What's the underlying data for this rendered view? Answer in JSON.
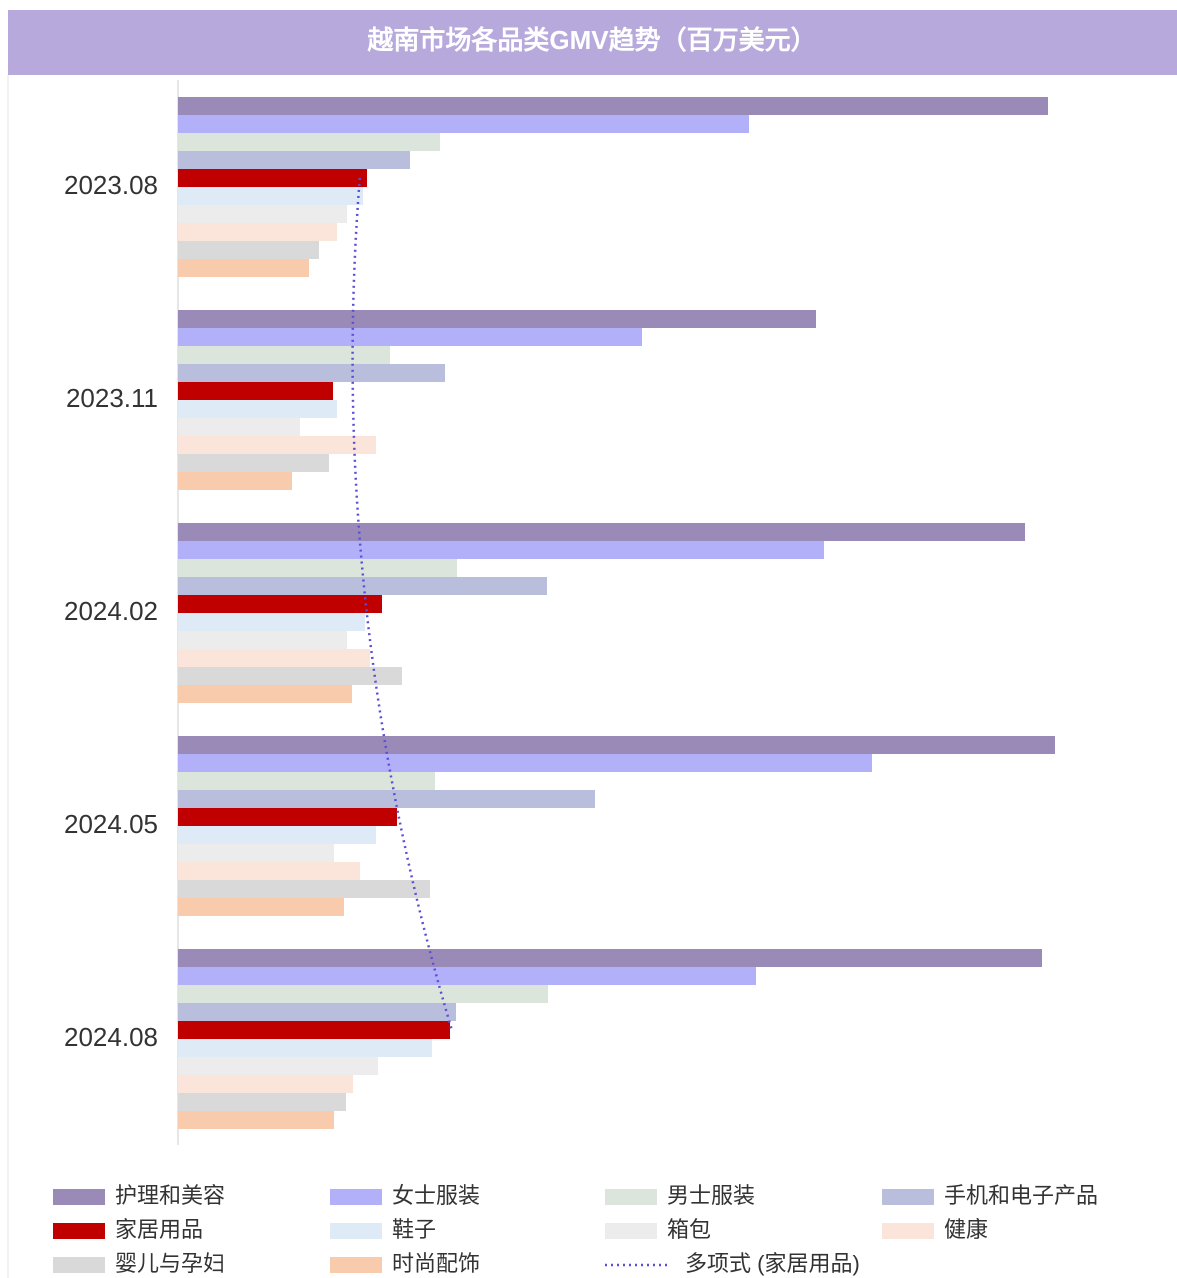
{
  "chart_data": {
    "type": "hbar",
    "title": "越南市场各品类GMV趋势（百万美元）",
    "categories": [
      "2023.08",
      "2023.11",
      "2024.02",
      "2024.05",
      "2024.08"
    ],
    "xlim": [
      0,
      1000
    ],
    "series": [
      {
        "name": "护理和美容",
        "color": "#9a8ab8",
        "values": [
          870,
          638,
          847,
          877,
          864
        ]
      },
      {
        "name": "女士服装",
        "color": "#b2b0f8",
        "values": [
          571,
          464,
          646,
          694,
          578
        ]
      },
      {
        "name": "男士服装",
        "color": "#dce5dc",
        "values": [
          262,
          212,
          279,
          257,
          370
        ]
      },
      {
        "name": "手机和电子产品",
        "color": "#b8bedc",
        "values": [
          232,
          267,
          369,
          417,
          278
        ]
      },
      {
        "name": "家居用品",
        "color": "#c00000",
        "values": [
          189,
          155,
          204,
          219,
          272
        ]
      },
      {
        "name": "鞋子",
        "color": "#deeaf5",
        "values": [
          185,
          159,
          187,
          198,
          254
        ]
      },
      {
        "name": "箱包",
        "color": "#ececec",
        "values": [
          169,
          122,
          169,
          156,
          200
        ]
      },
      {
        "name": "健康",
        "color": "#fbe5da",
        "values": [
          159,
          198,
          192,
          182,
          175
        ]
      },
      {
        "name": "婴儿与孕妇",
        "color": "#d9d9d9",
        "values": [
          141,
          151,
          224,
          252,
          168
        ]
      },
      {
        "name": "时尚配饰",
        "color": "#f8cbad",
        "values": [
          131,
          114,
          174,
          166,
          156
        ]
      }
    ],
    "trendline": {
      "name": "多项式 (家居用品)",
      "color": "#5a4fd6"
    }
  }
}
